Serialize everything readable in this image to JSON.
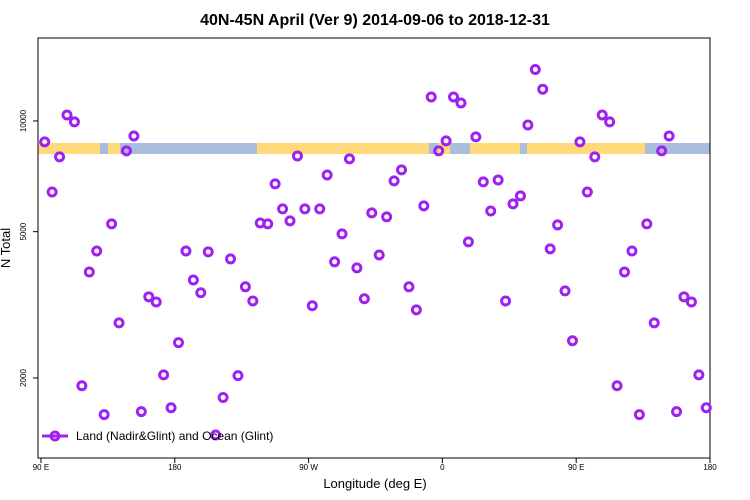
{
  "chart_data": {
    "type": "scatter",
    "title": "40N-45N April (Ver 9)   2014-09-06 to 2018-12-31",
    "x_label": "Longitude (deg E)",
    "y_label": "N Total",
    "log_y": true,
    "legend_position": "bottom-left",
    "xlim": [
      -272,
      180
    ],
    "ylim": [
      1212,
      16810
    ],
    "xticks": [
      {
        "value": -270,
        "label": "90 E"
      },
      {
        "value": -180,
        "label": "180"
      },
      {
        "value": -90,
        "label": "90 W"
      },
      0,
      {
        "value": 90,
        "label": "90 E"
      },
      180
    ],
    "yticks": [
      2000,
      5000,
      10000
    ],
    "series": [
      {
        "name": "Land (Nadir&Glint) and Ocean (Glint)",
        "color": "#a020f0",
        "x": [
          -267.5,
          -262.5,
          -257.5,
          -252.5,
          -247.5,
          -242.5,
          -237.5,
          -232.5,
          -227.5,
          -222.5,
          -217.5,
          -212.5,
          -207.5,
          -202.5,
          -197.5,
          -192.5,
          -187.5,
          -182.5,
          -177.5,
          -172.5,
          -167.5,
          -162.5,
          -157.5,
          -152.5,
          -147.5,
          -142.5,
          -137.5,
          -132.5,
          -127.5,
          -122.5,
          -117.5,
          -112.5,
          -107.5,
          -102.5,
          -97.5,
          -92.5,
          -87.5,
          -82.5,
          -77.5,
          -72.5,
          -67.5,
          -62.5,
          -57.5,
          -52.5,
          -47.5,
          -42.5,
          -37.5,
          -32.5,
          -27.5,
          -22.5,
          -17.5,
          -12.5,
          -7.5,
          -2.5,
          2.5,
          7.5,
          12.5,
          17.5,
          22.5,
          27.5,
          32.5,
          37.5,
          42.5,
          47.5,
          52.5,
          57.5,
          62.5,
          67.5,
          72.5,
          77.5,
          82.5,
          87.5,
          92.5,
          97.5,
          102.5,
          107.5,
          112.5,
          117.5,
          122.5,
          127.5,
          132.5,
          137.5,
          142.5,
          147.5,
          152.5,
          157.5,
          162.5,
          167.5,
          172.5,
          177.5
        ],
        "values": [
          8770,
          6410,
          7985,
          10380,
          9940,
          1905,
          3885,
          4430,
          1590,
          5250,
          2825,
          8290,
          9100,
          1620,
          3325,
          3220,
          2040,
          1660,
          2495,
          4430,
          3695,
          3410,
          4405,
          1400,
          1770,
          4215,
          2030,
          3540,
          3240,
          5280,
          5250,
          6745,
          5765,
          5350,
          8030,
          5765,
          3145,
          5765,
          7130,
          4140,
          4930,
          7885,
          3985,
          3285,
          5625,
          4320,
          5485,
          6870,
          7360,
          3540,
          3065,
          5875,
          11620,
          8290,
          8825,
          11620,
          11190,
          4690,
          9050,
          6830,
          5690,
          6910,
          3240,
          5950,
          6255,
          9750,
          13800,
          12200,
          4490,
          5215,
          3450,
          2525,
          8770,
          6410,
          7985,
          10380,
          9940,
          1905,
          3885,
          4430,
          1590,
          5250,
          2825,
          8290,
          9100,
          1620,
          3325,
          3220,
          2040,
          1660
        ]
      }
    ]
  }
}
